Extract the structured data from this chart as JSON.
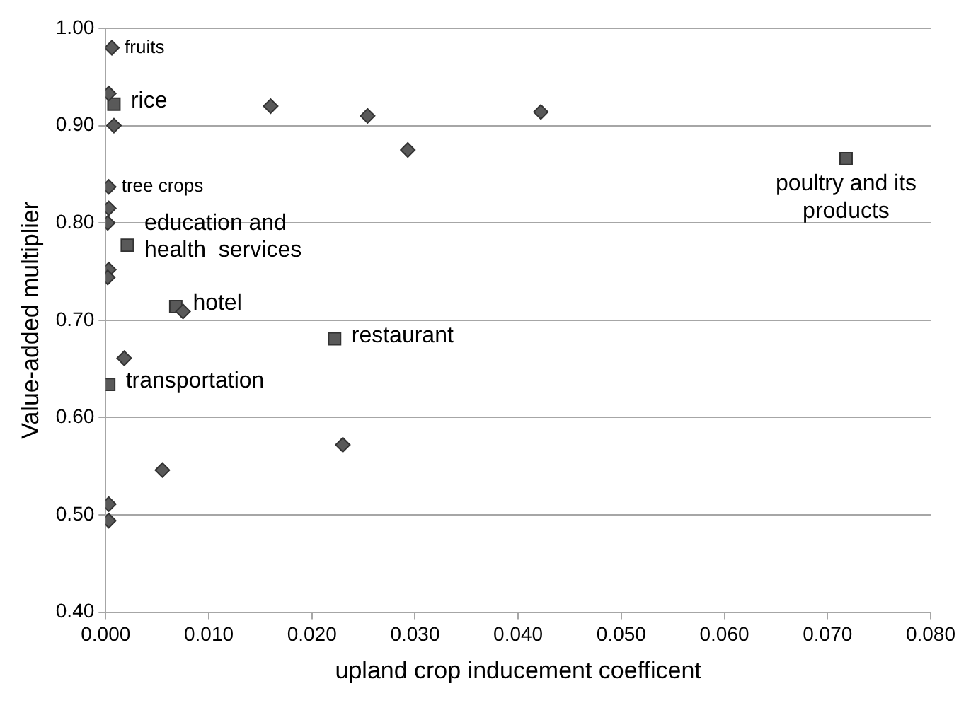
{
  "chart_data": {
    "type": "scatter",
    "xlabel": "upland crop inducement coefficent",
    "ylabel": "Value-added multiplier",
    "series": [
      {
        "color": "#595959",
        "marker": "diamond",
        "x": [
          0.0006,
          0.0003,
          0.0008,
          0.016,
          0.0254,
          0.0293,
          0.0422,
          0.0003,
          0.0003,
          0.0002,
          0.0003,
          0.0002,
          0.0075,
          0.0018,
          0.023,
          0.0055,
          0.0003,
          0.0003
        ],
        "values": [
          0.98,
          0.933,
          0.9,
          0.92,
          0.91,
          0.875,
          0.914,
          0.837,
          0.815,
          0.8,
          0.752,
          0.744,
          0.709,
          0.661,
          0.572,
          0.546,
          0.511,
          0.494
        ]
      },
      {
        "color": "#595959",
        "marker": "square",
        "x": [
          0.0008,
          0.0021,
          0.0068,
          0.0222,
          0.0003,
          0.0718
        ],
        "values": [
          0.922,
          0.777,
          0.714,
          0.681,
          0.634,
          0.866
        ]
      }
    ],
    "annotations": [
      {
        "text": "fruits",
        "x": 0.0006,
        "y": 0.98
      },
      {
        "text": "tree crops",
        "x": 0.0003,
        "y": 0.837
      },
      {
        "text": "rice",
        "x": 0.0008,
        "y": 0.922
      },
      {
        "text": "education and\nhealth  services",
        "x": 0.0021,
        "y": 0.777
      },
      {
        "text": "hotel",
        "x": 0.0068,
        "y": 0.714
      },
      {
        "text": "restaurant",
        "x": 0.0222,
        "y": 0.681
      },
      {
        "text": "transportation",
        "x": 0.0003,
        "y": 0.634
      },
      {
        "text": "poultry and its\nproducts",
        "x": 0.0718,
        "y": 0.866
      }
    ],
    "xlim": [
      0,
      0.08
    ],
    "xticks": [
      {
        "value": 0,
        "label": "0.000"
      },
      {
        "value": 0.01,
        "label": "0.010"
      },
      {
        "value": 0.02,
        "label": "0.020"
      },
      {
        "value": 0.03,
        "label": "0.030"
      },
      {
        "value": 0.04,
        "label": "0.040"
      },
      {
        "value": 0.05,
        "label": "0.050"
      },
      {
        "value": 0.06,
        "label": "0.060"
      },
      {
        "value": 0.07,
        "label": "0.070"
      },
      {
        "value": 0.08,
        "label": "0.080"
      }
    ],
    "ylim": [
      0.4,
      1
    ],
    "yticks": [
      {
        "value": 0.4,
        "label": "0.40"
      },
      {
        "value": 0.5,
        "label": "0.50"
      },
      {
        "value": 0.6,
        "label": "0.60"
      },
      {
        "value": 0.7,
        "label": "0.70"
      },
      {
        "value": 0.8,
        "label": "0.80"
      },
      {
        "value": 0.9,
        "label": "0.90"
      },
      {
        "value": 1,
        "label": "1.00"
      }
    ],
    "grid": "y",
    "legend": false
  }
}
